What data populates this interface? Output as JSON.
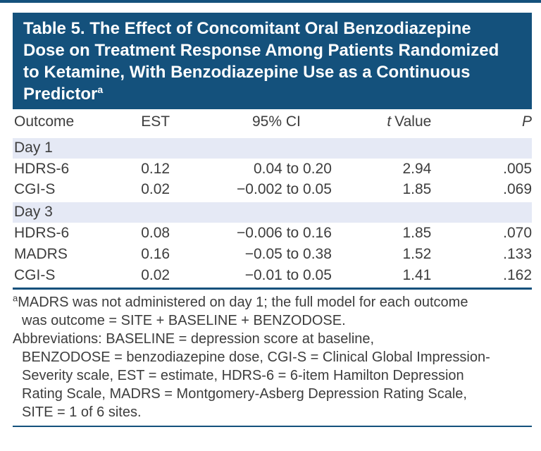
{
  "colors": {
    "navy": "#14517c",
    "section_band": "#e5e9f5",
    "body_text": "#3d3d3d",
    "header_rule": "#4d4d4d",
    "title_text": "#ffffff"
  },
  "title": {
    "lines": [
      "Table 5. The Effect of Concomitant Oral Benzodiazepine",
      "Dose on Treatment Response Among Patients Randomized",
      "to Ketamine, With Benzodiazepine Use as a Continuous",
      "Predictor"
    ],
    "superscript": "a"
  },
  "table": {
    "headers": {
      "outcome": "Outcome",
      "est": "EST",
      "ci": "95% CI",
      "t_italic": "t",
      "t_rest": "Value",
      "p": "P"
    },
    "sections": [
      {
        "label": "Day 1",
        "rows": [
          {
            "outcome": "HDRS-6",
            "est": "0.12",
            "ci": "0.04 to 0.20",
            "t": "2.94",
            "p": ".005"
          },
          {
            "outcome": "CGI-S",
            "est": "0.02",
            "ci": "−0.002 to 0.05",
            "t": "1.85",
            "p": ".069"
          }
        ]
      },
      {
        "label": "Day 3",
        "rows": [
          {
            "outcome": "HDRS-6",
            "est": "0.08",
            "ci": "−0.006 to 0.16",
            "t": "1.85",
            "p": ".070"
          },
          {
            "outcome": "MADRS",
            "est": "0.16",
            "ci": "−0.05 to 0.38",
            "t": "1.52",
            "p": ".133"
          },
          {
            "outcome": "CGI-S",
            "est": "0.02",
            "ci": "−0.01 to 0.05",
            "t": "1.41",
            "p": ".162"
          }
        ]
      }
    ]
  },
  "footnotes": {
    "note_a": {
      "marker": "a",
      "lines": [
        "MADRS was not administered on day 1; the full model for each outcome",
        "was outcome = SITE + BASELINE + BENZODOSE."
      ]
    },
    "abbreviations": {
      "lines": [
        "Abbreviations: BASELINE = depression score at baseline,",
        "BENZODOSE = benzodiazepine dose, CGI-S = Clinical Global Impression-",
        "Severity scale, EST = estimate, HDRS-6 = 6-item Hamilton Depression",
        "Rating Scale, MADRS = Montgomery-Asberg Depression Rating Scale,",
        "SITE = 1 of 6 sites."
      ]
    }
  }
}
